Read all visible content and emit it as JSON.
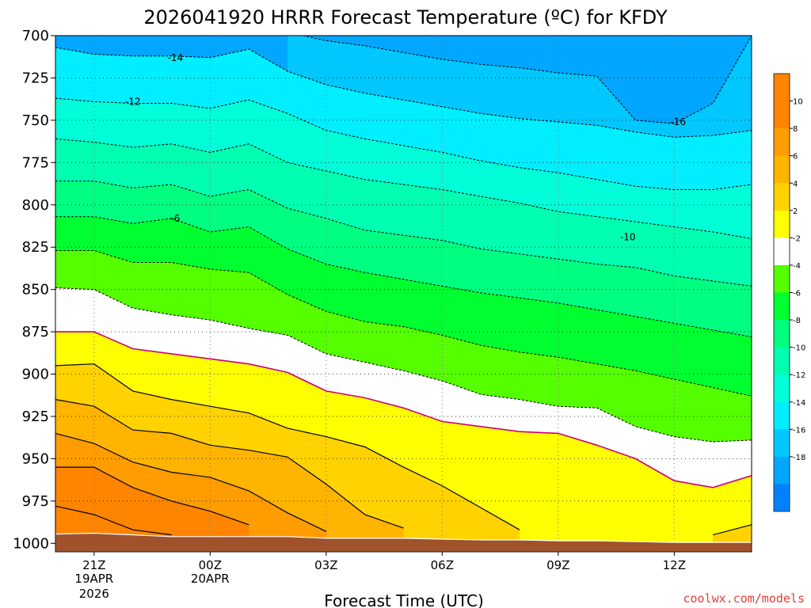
{
  "chart_data": {
    "type": "heatmap",
    "title": "2026041920 HRRR Forecast Temperature (ºC) for KFDY",
    "xlabel": "Forecast Time (UTC)",
    "ylabel": "",
    "credit": "coolwx.com/models",
    "y_axis": {
      "units": "hPa",
      "ylim": [
        700,
        1005
      ],
      "ticks": [
        "700",
        "725",
        "750",
        "775",
        "800",
        "825",
        "850",
        "875",
        "900",
        "925",
        "950",
        "975",
        "1000"
      ]
    },
    "x_axis": {
      "units": "forecast hour",
      "xlim": [
        -1,
        17
      ],
      "ticks": [
        {
          "hour": 0,
          "label": "21Z",
          "sub1": "19APR",
          "sub2": "2026"
        },
        {
          "hour": 3,
          "label": "00Z",
          "sub1": "20APR",
          "sub2": ""
        },
        {
          "hour": 6,
          "label": "03Z",
          "sub1": "",
          "sub2": ""
        },
        {
          "hour": 9,
          "label": "06Z",
          "sub1": "",
          "sub2": ""
        },
        {
          "hour": 12,
          "label": "09Z",
          "sub1": "",
          "sub2": ""
        },
        {
          "hour": 15,
          "label": "12Z",
          "sub1": "",
          "sub2": ""
        }
      ]
    },
    "hours": [
      -1,
      0,
      1,
      2,
      3,
      4,
      5,
      6,
      7,
      8,
      9,
      10,
      11,
      12,
      13,
      14,
      15,
      16,
      17
    ],
    "surface_pressure": [
      994.5,
      994,
      995,
      996,
      996,
      996,
      996,
      997,
      997,
      997,
      997.5,
      998,
      998,
      998.5,
      998.5,
      999,
      999.5,
      999.5,
      999.5
    ],
    "isotherms": [
      {
        "value": -16,
        "label": "-16",
        "pressure": [
          null,
          null,
          null,
          null,
          null,
          null,
          698,
          703,
          706,
          710,
          714,
          717,
          719,
          722,
          724,
          750,
          752,
          740,
          700
        ]
      },
      {
        "value": -14,
        "label": "-14",
        "pressure": [
          707,
          711,
          712,
          712,
          713,
          708,
          721,
          729,
          734,
          738,
          742,
          746,
          749,
          751,
          753,
          757,
          760,
          759,
          756
        ]
      },
      {
        "value": -12,
        "label": "-12",
        "pressure": [
          737,
          739,
          740,
          740,
          743,
          738,
          746,
          756,
          761,
          765,
          769,
          774,
          778,
          781,
          785,
          789,
          791,
          791,
          788
        ]
      },
      {
        "value": -10,
        "label": "-10",
        "pressure": [
          761,
          763,
          766,
          764,
          769,
          764,
          775,
          780,
          785,
          788,
          791,
          795,
          799,
          804,
          807,
          810,
          813,
          816,
          820
        ]
      },
      {
        "value": -8,
        "label": "-8",
        "pressure": [
          786,
          786,
          790,
          788,
          795,
          791,
          802,
          808,
          815,
          818,
          821,
          826,
          829,
          832,
          835,
          837,
          842,
          845,
          848
        ]
      },
      {
        "value": -6,
        "label": "-6",
        "pressure": [
          807,
          807,
          811,
          808,
          816,
          813,
          826,
          835,
          840,
          844,
          848,
          852,
          855,
          858,
          862,
          866,
          870,
          874,
          878
        ]
      },
      {
        "value": -4,
        "label": "-4",
        "pressure": [
          827,
          827,
          834,
          834,
          838,
          840,
          853,
          863,
          869,
          872,
          877,
          883,
          887,
          890,
          894,
          898,
          903,
          908,
          913
        ]
      },
      {
        "value": -2,
        "label": "-2",
        "pressure": [
          849,
          850,
          861,
          865,
          868,
          873,
          877,
          888,
          893,
          898,
          904,
          912,
          915,
          919,
          920,
          931,
          937,
          940,
          939
        ]
      },
      {
        "value": 0,
        "label": "0",
        "pressure": [
          875,
          875,
          885,
          888,
          891,
          894,
          899,
          910,
          914,
          920,
          928,
          931,
          934,
          935,
          942,
          950,
          963,
          967,
          960
        ]
      },
      {
        "value": 2,
        "label": "2",
        "pressure": [
          895,
          894,
          910,
          915,
          919,
          923,
          932,
          937,
          943,
          955,
          966,
          979,
          992,
          null,
          null,
          null,
          null,
          995,
          989
        ]
      },
      {
        "value": 4,
        "label": "4",
        "pressure": [
          915,
          919,
          933,
          935,
          942,
          945,
          949,
          965,
          983,
          991,
          null,
          null,
          null,
          null,
          null,
          null,
          null,
          null,
          null
        ]
      },
      {
        "value": 6,
        "label": "6",
        "pressure": [
          935,
          941,
          952,
          958,
          961,
          969,
          982,
          993,
          null,
          null,
          null,
          null,
          null,
          null,
          null,
          null,
          null,
          null,
          null
        ]
      },
      {
        "value": 8,
        "label": "8",
        "pressure": [
          955,
          955,
          967,
          975,
          981,
          989,
          null,
          null,
          null,
          null,
          null,
          null,
          null,
          null,
          null,
          null,
          null,
          null,
          null
        ]
      },
      {
        "value": 10,
        "label": "10",
        "pressure": [
          978,
          983,
          992,
          995,
          null,
          null,
          null,
          null,
          null,
          null,
          null,
          null,
          null,
          null,
          null,
          null,
          null,
          null,
          null
        ]
      }
    ],
    "inline_labels": [
      {
        "text": "-14",
        "hour": 2.1,
        "pressure": 713
      },
      {
        "text": "-12",
        "hour": 1.0,
        "pressure": 739
      },
      {
        "text": "-6",
        "hour": 2.1,
        "pressure": 808
      },
      {
        "text": "-16",
        "hour": 15.1,
        "pressure": 751
      },
      {
        "text": "-10",
        "hour": 13.8,
        "pressure": 819
      }
    ],
    "colorbar": {
      "labels": [
        "10",
        "8",
        "6",
        "4",
        "2",
        "-2",
        "-4",
        "-6",
        "-8",
        "-10",
        "-12",
        "-14",
        "-16",
        "-18"
      ],
      "colors": {
        "t8_10": "#ff8400",
        "t6_8": "#ff9c00",
        "t4_6": "#ffb400",
        "t2_4": "#ffd200",
        "t0_2": "#ffff00",
        "tm2_0": "#ffffff",
        "tm4_m2": "#55ff00",
        "tm6_m4": "#00ff30",
        "tm8_m6": "#00ff80",
        "tm10_m8": "#00ffb0",
        "tm12_m10": "#00ffd8",
        "tm14_m12": "#00eeff",
        "tm16_m14": "#00c8ff",
        "tm18_m16": "#00a6ff",
        "tm20_m18": "#0082ff"
      }
    },
    "palette": {
      "ground": "#a0522d",
      "freezing_line": "#cc0077",
      "negative_contours": "#000000",
      "positive_contours": "#000000"
    }
  }
}
